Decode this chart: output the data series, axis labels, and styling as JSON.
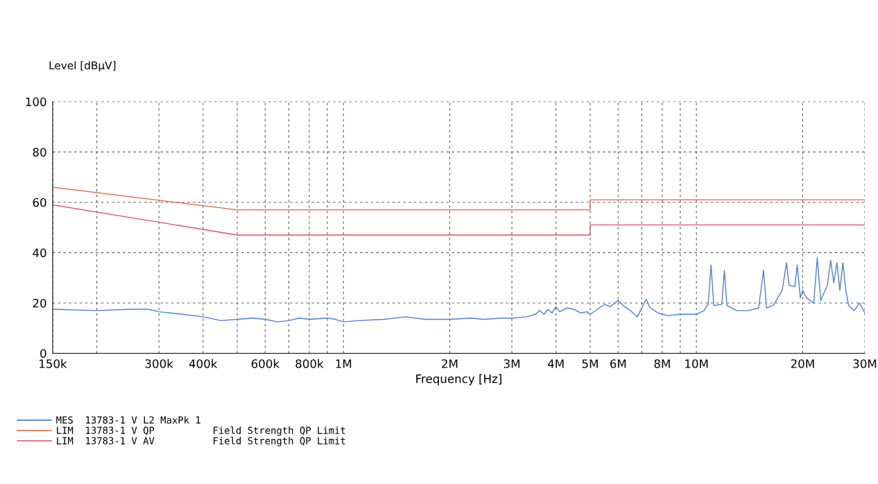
{
  "chart_data": {
    "type": "line",
    "xlabel": "Frequency [Hz]",
    "ylabel": "Level [dBµV]",
    "log": "x",
    "xlim": [
      150000,
      30000000
    ],
    "ylim": [
      0,
      100
    ],
    "xticks": [
      {
        "value": 150000,
        "label": "150k"
      },
      {
        "value": 200000,
        "label": null
      },
      {
        "value": 300000,
        "label": "300k"
      },
      {
        "value": 400000,
        "label": "400k"
      },
      {
        "value": 500000,
        "label": null
      },
      {
        "value": 600000,
        "label": "600k"
      },
      {
        "value": 700000,
        "label": null
      },
      {
        "value": 800000,
        "label": "800k"
      },
      {
        "value": 900000,
        "label": null
      },
      {
        "value": 1000000,
        "label": "1M"
      },
      {
        "value": 2000000,
        "label": "2M"
      },
      {
        "value": 3000000,
        "label": "3M"
      },
      {
        "value": 4000000,
        "label": "4M"
      },
      {
        "value": 5000000,
        "label": "5M"
      },
      {
        "value": 6000000,
        "label": "6M"
      },
      {
        "value": 7000000,
        "label": null
      },
      {
        "value": 8000000,
        "label": "8M"
      },
      {
        "value": 9000000,
        "label": null
      },
      {
        "value": 10000000,
        "label": "10M"
      },
      {
        "value": 20000000,
        "label": "20M"
      },
      {
        "value": 30000000,
        "label": "30M"
      }
    ],
    "yticks": [
      0,
      20,
      40,
      60,
      80,
      100
    ],
    "grid": true,
    "legend": "bottom",
    "line_style": "solid",
    "marker": "none",
    "series": [
      {
        "name": "MES  13783-1 V L2 MaxPk 1",
        "color": "#4a7fd6",
        "x": [
          150000,
          200000,
          250000,
          280000,
          300000,
          350000,
          400000,
          450000,
          500000,
          550000,
          600000,
          650000,
          700000,
          750000,
          800000,
          900000,
          950000,
          1000000,
          1100000,
          1300000,
          1500000,
          1700000,
          2000000,
          2300000,
          2500000,
          2800000,
          3000000,
          3300000,
          3500000,
          3600000,
          3700000,
          3800000,
          3900000,
          4000000,
          4100000,
          4300000,
          4500000,
          4700000,
          4900000,
          5000000,
          5300000,
          5500000,
          5700000,
          6000000,
          6200000,
          6500000,
          6800000,
          7000000,
          7200000,
          7400000,
          7800000,
          8300000,
          9000000,
          10000000,
          10500000,
          10800000,
          11000000,
          11200000,
          11800000,
          12000000,
          12200000,
          13000000,
          14000000,
          15000000,
          15500000,
          15800000,
          16500000,
          17000000,
          17500000,
          18000000,
          18300000,
          19000000,
          19300000,
          19700000,
          20000000,
          20500000,
          21500000,
          22000000,
          22500000,
          23500000,
          24000000,
          24500000,
          25000000,
          25500000,
          26000000,
          26500000,
          27000000,
          28000000,
          29000000,
          30000000
        ],
        "values": [
          17.5,
          17,
          17.5,
          17.5,
          16.5,
          15.5,
          14.5,
          13,
          13.5,
          14,
          13.5,
          12.5,
          13,
          14,
          13.5,
          14,
          13.5,
          12.5,
          13,
          13.5,
          14.5,
          13.5,
          13.5,
          14,
          13.5,
          14,
          14,
          14.5,
          15.5,
          17,
          15.5,
          17.5,
          16,
          18.5,
          16.5,
          18,
          17.5,
          16,
          16.5,
          15.5,
          18,
          19.5,
          18.5,
          21,
          19,
          17,
          14.5,
          18,
          21.5,
          18,
          16,
          15,
          15.5,
          15.5,
          17,
          19.5,
          35,
          19,
          19.5,
          33,
          19,
          17,
          17,
          18,
          33,
          18,
          19,
          22,
          25,
          36,
          27,
          26.5,
          35,
          22,
          25,
          22,
          20,
          38,
          21,
          27,
          37,
          28,
          36,
          25,
          36,
          25,
          19,
          17,
          20,
          16
        ]
      },
      {
        "name": "LIM  13783-1 V QP          Field Strength QP Limit",
        "color": "#e0603c",
        "x": [
          150000,
          500000,
          5000000,
          5000000,
          30000000
        ],
        "values": [
          66,
          57,
          57,
          61,
          61
        ]
      },
      {
        "name": "LIM  13783-1 V AV          Field Strength QP Limit",
        "color": "#e04e64",
        "x": [
          150000,
          500000,
          5000000,
          5000000,
          30000000
        ],
        "values": [
          59,
          47,
          47,
          51,
          51
        ]
      }
    ]
  }
}
